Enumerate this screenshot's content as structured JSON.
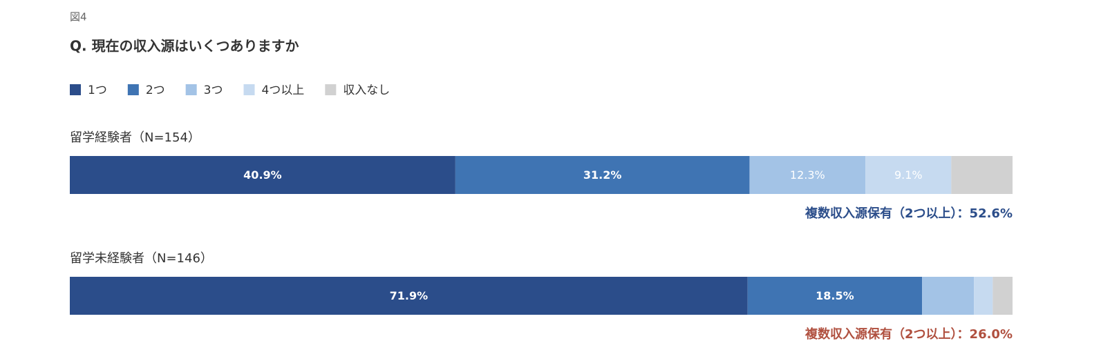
{
  "chart_data": {
    "type": "stacked-bar-horizontal",
    "figure_label": "図4",
    "title": "Q. 現在の収入源はいくつありますか",
    "categories": [
      "留学経験者（N=154）",
      "留学未経験者（N=146）"
    ],
    "xlim": [
      0,
      100
    ],
    "series": [
      {
        "name": "1つ",
        "color": "#2b4d8a",
        "values": [
          40.9,
          71.9
        ],
        "value_labels": [
          "40.9%",
          "71.9%"
        ]
      },
      {
        "name": "2つ",
        "color": "#3f74b3",
        "values": [
          31.2,
          18.5
        ],
        "value_labels": [
          "31.2%",
          "18.5%"
        ]
      },
      {
        "name": "3つ",
        "color": "#a3c3e6",
        "values": [
          12.3,
          5.5
        ],
        "value_labels": [
          "12.3%",
          null
        ]
      },
      {
        "name": "4つ以上",
        "color": "#c6daf0",
        "values": [
          9.1,
          2.0
        ],
        "value_labels": [
          "9.1%",
          null
        ]
      },
      {
        "name": "収入なし",
        "color": "#d1d1d1",
        "values": [
          6.5,
          2.1
        ],
        "value_labels": [
          null,
          null
        ]
      }
    ],
    "annotations": [
      {
        "text": "複数収入源保有（2つ以上）：52.6%",
        "color": "#2b4d8a"
      },
      {
        "text": "複数収入源保有（2つ以上）：26.0%",
        "color": "#b0503f"
      }
    ]
  }
}
